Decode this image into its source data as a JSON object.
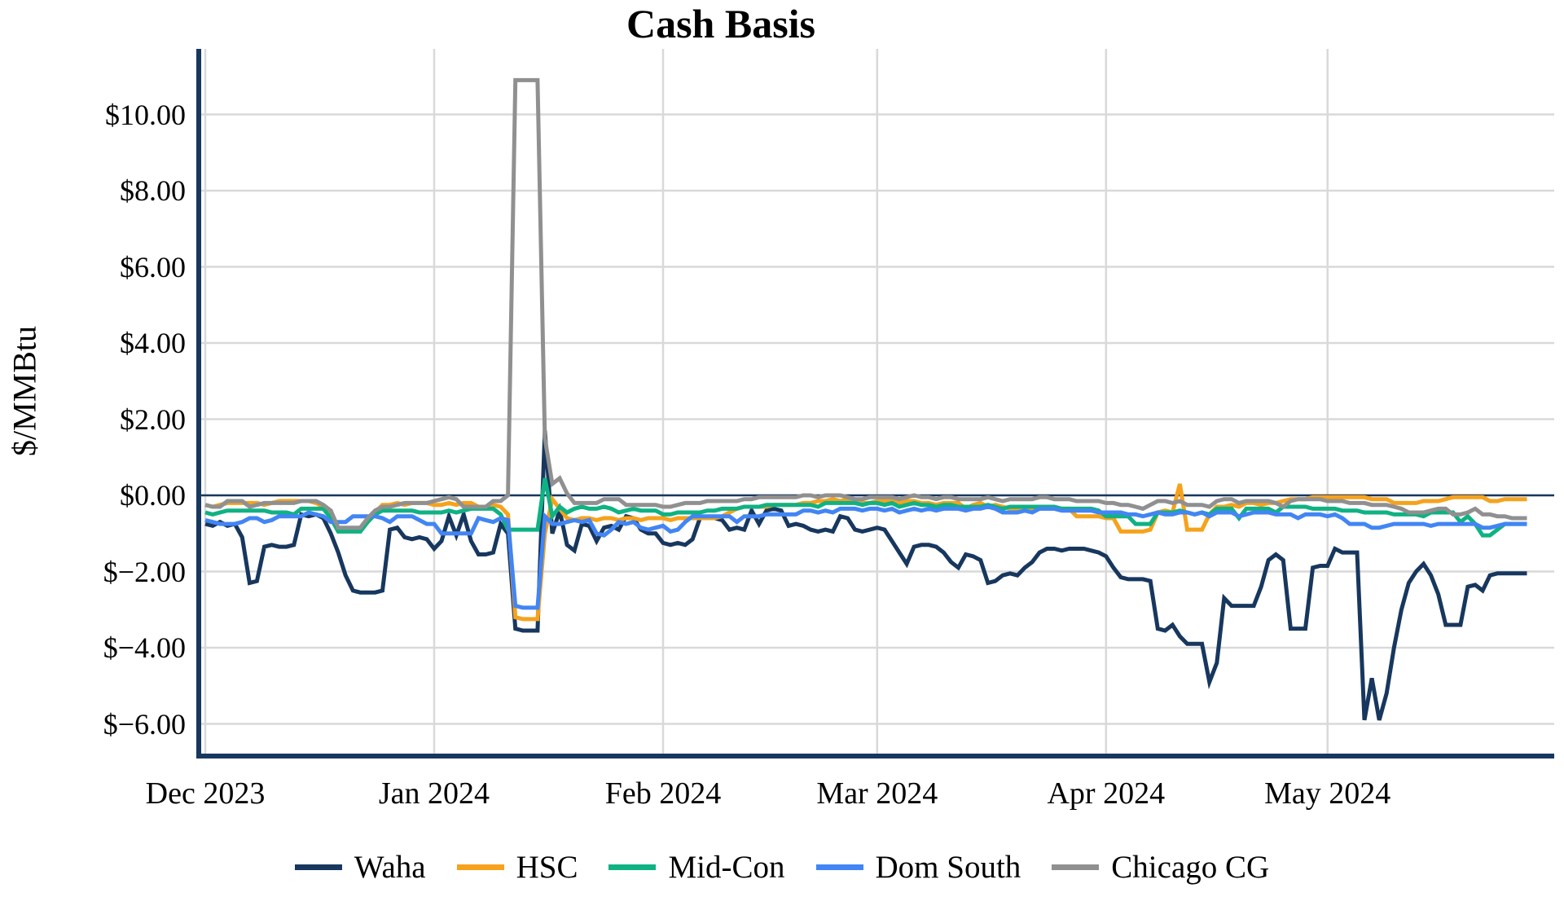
{
  "page": {
    "background": "#ffffff"
  },
  "chart_data": {
    "type": "line",
    "title": "Cash Basis",
    "ylabel": "$/MMBtu",
    "x_unit": "day index from Dec 1 2023 (daily cash basis values)",
    "x_axis": {
      "domain_days": [
        0,
        182
      ],
      "tick_days": [
        0,
        31,
        62,
        91,
        122,
        152
      ],
      "tick_labels": [
        "Dec 2023",
        "Jan 2024",
        "Feb 2024",
        "Mar 2024",
        "Apr 2024",
        "May 2024"
      ]
    },
    "y_axis": {
      "range": [
        -6.8,
        11.7
      ],
      "ticks": [
        {
          "value": 10,
          "label": "$10.00"
        },
        {
          "value": 8,
          "label": "$8.00"
        },
        {
          "value": 6,
          "label": "$6.00"
        },
        {
          "value": 4,
          "label": "$4.00"
        },
        {
          "value": 2,
          "label": "$2.00"
        },
        {
          "value": 0,
          "label": "$0.00"
        },
        {
          "value": -2,
          "label": "$−2.00"
        },
        {
          "value": -4,
          "label": "$−4.00"
        },
        {
          "value": -6,
          "label": "$−6.00"
        }
      ]
    },
    "grid": true,
    "legend_position": "bottom",
    "colors": {
      "axis": "#17375e",
      "zero_line": "#17375e",
      "gridline": "#d9d9d9"
    },
    "series": [
      {
        "name": "Waha",
        "color": "#17375e",
        "values": [
          -0.75,
          -0.8,
          -0.7,
          -0.8,
          -0.75,
          -1.1,
          -2.3,
          -2.25,
          -1.35,
          -1.3,
          -1.35,
          -1.35,
          -1.3,
          -0.5,
          -0.55,
          -0.5,
          -0.6,
          -1.0,
          -1.5,
          -2.1,
          -2.5,
          -2.55,
          -2.55,
          -2.55,
          -2.5,
          -0.9,
          -0.85,
          -1.1,
          -1.15,
          -1.1,
          -1.15,
          -1.4,
          -1.2,
          -0.55,
          -1.05,
          -0.5,
          -1.2,
          -1.55,
          -1.55,
          -1.5,
          -0.75,
          -1.0,
          -3.5,
          -3.55,
          -3.55,
          -3.55,
          1.7,
          -1.0,
          -0.4,
          -1.3,
          -1.45,
          -0.75,
          -0.8,
          -1.2,
          -0.85,
          -0.8,
          -0.9,
          -0.55,
          -0.6,
          -0.9,
          -1.0,
          -1.0,
          -1.25,
          -1.3,
          -1.25,
          -1.3,
          -1.15,
          -0.6,
          -0.6,
          -0.6,
          -0.65,
          -0.9,
          -0.85,
          -0.9,
          -0.4,
          -0.75,
          -0.4,
          -0.35,
          -0.4,
          -0.8,
          -0.75,
          -0.8,
          -0.9,
          -0.95,
          -0.9,
          -0.95,
          -0.55,
          -0.6,
          -0.9,
          -0.95,
          -0.9,
          -0.85,
          -0.9,
          -1.2,
          -1.5,
          -1.8,
          -1.35,
          -1.3,
          -1.3,
          -1.35,
          -1.5,
          -1.75,
          -1.9,
          -1.55,
          -1.6,
          -1.7,
          -2.3,
          -2.25,
          -2.1,
          -2.05,
          -2.1,
          -1.9,
          -1.75,
          -1.5,
          -1.4,
          -1.4,
          -1.45,
          -1.4,
          -1.4,
          -1.4,
          -1.45,
          -1.5,
          -1.6,
          -1.9,
          -2.15,
          -2.2,
          -2.2,
          -2.2,
          -2.25,
          -3.5,
          -3.55,
          -3.4,
          -3.7,
          -3.9,
          -3.9,
          -3.9,
          -4.9,
          -4.4,
          -2.7,
          -2.9,
          -2.9,
          -2.9,
          -2.9,
          -2.4,
          -1.7,
          -1.55,
          -1.7,
          -3.5,
          -3.5,
          -3.5,
          -1.9,
          -1.85,
          -1.85,
          -1.4,
          -1.5,
          -1.5,
          -1.5,
          -5.9,
          -4.8,
          -5.9,
          -5.2,
          -4.0,
          -3.0,
          -2.3,
          -2.0,
          -1.8,
          -2.1,
          -2.6,
          -3.4,
          -3.4,
          -3.4,
          -2.4,
          -2.35,
          -2.5,
          -2.1,
          -2.05,
          -2.05,
          -2.05,
          -2.05,
          -2.05
        ]
      },
      {
        "name": "HSC",
        "color": "#f6a21c",
        "values": [
          -0.25,
          -0.3,
          -0.25,
          -0.2,
          -0.2,
          -0.2,
          -0.2,
          -0.2,
          -0.25,
          -0.2,
          -0.15,
          -0.15,
          -0.15,
          -0.15,
          -0.15,
          -0.2,
          -0.3,
          -0.55,
          -0.95,
          -0.95,
          -0.95,
          -0.95,
          -0.7,
          -0.45,
          -0.25,
          -0.25,
          -0.2,
          -0.25,
          -0.2,
          -0.2,
          -0.2,
          -0.25,
          -0.25,
          -0.2,
          -0.25,
          -0.2,
          -0.2,
          -0.3,
          -0.3,
          -0.25,
          -0.3,
          -0.5,
          -3.2,
          -3.25,
          -3.25,
          -3.25,
          -1.0,
          -0.1,
          -0.35,
          -0.6,
          -0.65,
          -0.6,
          -0.6,
          -0.65,
          -0.6,
          -0.6,
          -0.65,
          -0.6,
          -0.6,
          -0.65,
          -0.6,
          -0.6,
          -0.6,
          -0.65,
          -0.6,
          -0.6,
          -0.6,
          -0.6,
          -0.6,
          -0.6,
          -0.55,
          -0.45,
          -0.35,
          -0.3,
          -0.3,
          -0.3,
          -0.3,
          -0.25,
          -0.25,
          -0.25,
          -0.25,
          -0.2,
          -0.2,
          -0.15,
          -0.15,
          -0.1,
          -0.15,
          -0.1,
          -0.15,
          -0.2,
          -0.2,
          -0.15,
          -0.15,
          -0.15,
          -0.2,
          -0.15,
          -0.15,
          -0.2,
          -0.2,
          -0.25,
          -0.2,
          -0.2,
          -0.2,
          -0.35,
          -0.25,
          -0.2,
          -0.3,
          -0.25,
          -0.3,
          -0.35,
          -0.35,
          -0.35,
          -0.35,
          -0.35,
          -0.35,
          -0.35,
          -0.35,
          -0.35,
          -0.55,
          -0.55,
          -0.55,
          -0.55,
          -0.6,
          -0.6,
          -0.95,
          -0.95,
          -0.95,
          -0.95,
          -0.9,
          -0.45,
          -0.4,
          -0.45,
          0.3,
          -0.9,
          -0.9,
          -0.9,
          -0.5,
          -0.3,
          -0.3,
          -0.25,
          -0.3,
          -0.2,
          -0.2,
          -0.25,
          -0.2,
          -0.2,
          -0.15,
          -0.1,
          -0.1,
          -0.1,
          -0.05,
          -0.05,
          -0.05,
          -0.05,
          -0.05,
          -0.05,
          -0.05,
          -0.05,
          -0.1,
          -0.1,
          -0.1,
          -0.2,
          -0.2,
          -0.2,
          -0.2,
          -0.15,
          -0.15,
          -0.15,
          -0.1,
          -0.05,
          -0.05,
          -0.05,
          -0.05,
          -0.05,
          -0.15,
          -0.15,
          -0.1,
          -0.1,
          -0.1,
          -0.1
        ]
      },
      {
        "name": "Mid-Con",
        "color": "#0fb283",
        "values": [
          -0.45,
          -0.5,
          -0.45,
          -0.4,
          -0.4,
          -0.4,
          -0.4,
          -0.4,
          -0.4,
          -0.45,
          -0.45,
          -0.45,
          -0.5,
          -0.35,
          -0.35,
          -0.35,
          -0.35,
          -0.6,
          -0.95,
          -0.95,
          -0.95,
          -0.95,
          -0.7,
          -0.5,
          -0.4,
          -0.4,
          -0.4,
          -0.4,
          -0.4,
          -0.45,
          -0.45,
          -0.45,
          -0.45,
          -0.4,
          -0.45,
          -0.4,
          -0.35,
          -0.35,
          -0.35,
          -0.35,
          -0.5,
          -0.9,
          -0.9,
          -0.9,
          -0.9,
          -0.9,
          0.45,
          -0.55,
          -0.3,
          -0.45,
          -0.35,
          -0.3,
          -0.35,
          -0.35,
          -0.3,
          -0.35,
          -0.45,
          -0.4,
          -0.35,
          -0.4,
          -0.4,
          -0.4,
          -0.5,
          -0.5,
          -0.45,
          -0.45,
          -0.45,
          -0.45,
          -0.4,
          -0.4,
          -0.35,
          -0.35,
          -0.35,
          -0.3,
          -0.3,
          -0.3,
          -0.25,
          -0.25,
          -0.25,
          -0.25,
          -0.25,
          -0.25,
          -0.25,
          -0.3,
          -0.2,
          -0.2,
          -0.2,
          -0.2,
          -0.2,
          -0.25,
          -0.2,
          -0.2,
          -0.25,
          -0.2,
          -0.3,
          -0.25,
          -0.2,
          -0.25,
          -0.25,
          -0.3,
          -0.25,
          -0.25,
          -0.3,
          -0.3,
          -0.3,
          -0.3,
          -0.25,
          -0.3,
          -0.35,
          -0.3,
          -0.3,
          -0.3,
          -0.3,
          -0.3,
          -0.3,
          -0.3,
          -0.35,
          -0.35,
          -0.35,
          -0.35,
          -0.35,
          -0.4,
          -0.55,
          -0.55,
          -0.55,
          -0.55,
          -0.75,
          -0.75,
          -0.75,
          -0.45,
          -0.45,
          -0.45,
          -0.4,
          -0.45,
          -0.5,
          -0.45,
          -0.5,
          -0.35,
          -0.35,
          -0.35,
          -0.6,
          -0.35,
          -0.35,
          -0.35,
          -0.35,
          -0.45,
          -0.3,
          -0.3,
          -0.3,
          -0.3,
          -0.35,
          -0.35,
          -0.35,
          -0.35,
          -0.4,
          -0.4,
          -0.4,
          -0.45,
          -0.45,
          -0.45,
          -0.45,
          -0.5,
          -0.5,
          -0.5,
          -0.5,
          -0.55,
          -0.45,
          -0.45,
          -0.45,
          -0.45,
          -0.7,
          -0.55,
          -0.75,
          -1.05,
          -1.05,
          -0.9,
          -0.75,
          -0.75,
          -0.75,
          -0.75
        ]
      },
      {
        "name": "Dom South",
        "color": "#4285f4",
        "values": [
          -0.65,
          -0.7,
          -0.75,
          -0.75,
          -0.75,
          -0.7,
          -0.6,
          -0.6,
          -0.7,
          -0.65,
          -0.55,
          -0.55,
          -0.55,
          -0.55,
          -0.45,
          -0.5,
          -0.55,
          -0.7,
          -0.7,
          -0.7,
          -0.55,
          -0.55,
          -0.55,
          -0.55,
          -0.6,
          -0.7,
          -0.55,
          -0.55,
          -0.55,
          -0.65,
          -0.75,
          -0.75,
          -1.0,
          -1.0,
          -1.0,
          -1.0,
          -1.0,
          -0.6,
          -0.65,
          -0.7,
          -0.6,
          -0.65,
          -2.9,
          -2.95,
          -2.95,
          -2.95,
          -0.55,
          -0.75,
          -0.75,
          -0.7,
          -0.65,
          -0.7,
          -0.65,
          -1.0,
          -1.05,
          -0.9,
          -0.7,
          -0.75,
          -0.7,
          -0.85,
          -0.9,
          -0.85,
          -0.8,
          -0.95,
          -0.9,
          -0.7,
          -0.55,
          -0.55,
          -0.55,
          -0.55,
          -0.55,
          -0.55,
          -0.7,
          -0.55,
          -0.55,
          -0.55,
          -0.5,
          -0.5,
          -0.5,
          -0.5,
          -0.5,
          -0.4,
          -0.4,
          -0.45,
          -0.4,
          -0.45,
          -0.35,
          -0.35,
          -0.35,
          -0.4,
          -0.35,
          -0.35,
          -0.4,
          -0.35,
          -0.45,
          -0.4,
          -0.35,
          -0.4,
          -0.35,
          -0.4,
          -0.35,
          -0.35,
          -0.35,
          -0.4,
          -0.35,
          -0.35,
          -0.3,
          -0.35,
          -0.45,
          -0.45,
          -0.45,
          -0.4,
          -0.45,
          -0.35,
          -0.35,
          -0.35,
          -0.4,
          -0.4,
          -0.4,
          -0.4,
          -0.4,
          -0.45,
          -0.45,
          -0.45,
          -0.45,
          -0.5,
          -0.5,
          -0.55,
          -0.5,
          -0.45,
          -0.5,
          -0.5,
          -0.45,
          -0.45,
          -0.5,
          -0.45,
          -0.55,
          -0.45,
          -0.45,
          -0.45,
          -0.55,
          -0.5,
          -0.45,
          -0.45,
          -0.45,
          -0.5,
          -0.5,
          -0.5,
          -0.6,
          -0.5,
          -0.5,
          -0.5,
          -0.55,
          -0.5,
          -0.6,
          -0.75,
          -0.75,
          -0.75,
          -0.85,
          -0.85,
          -0.8,
          -0.75,
          -0.75,
          -0.75,
          -0.75,
          -0.75,
          -0.8,
          -0.75,
          -0.75,
          -0.75,
          -0.75,
          -0.75,
          -0.75,
          -0.85,
          -0.85,
          -0.8,
          -0.75,
          -0.75,
          -0.75,
          -0.75
        ]
      },
      {
        "name": "Chicago CG",
        "color": "#909090",
        "values": [
          -0.25,
          -0.3,
          -0.3,
          -0.15,
          -0.15,
          -0.15,
          -0.3,
          -0.25,
          -0.2,
          -0.2,
          -0.2,
          -0.2,
          -0.2,
          -0.15,
          -0.15,
          -0.15,
          -0.25,
          -0.4,
          -0.85,
          -0.85,
          -0.85,
          -0.85,
          -0.6,
          -0.4,
          -0.3,
          -0.3,
          -0.25,
          -0.2,
          -0.2,
          -0.2,
          -0.2,
          -0.15,
          -0.1,
          -0.05,
          -0.1,
          -0.3,
          -0.3,
          -0.3,
          -0.3,
          -0.15,
          -0.15,
          0.0,
          10.9,
          10.9,
          10.9,
          10.9,
          1.5,
          0.3,
          0.45,
          0.05,
          -0.2,
          -0.2,
          -0.2,
          -0.2,
          -0.1,
          -0.1,
          -0.1,
          -0.25,
          -0.25,
          -0.25,
          -0.25,
          -0.25,
          -0.3,
          -0.3,
          -0.25,
          -0.2,
          -0.2,
          -0.2,
          -0.15,
          -0.15,
          -0.15,
          -0.15,
          -0.15,
          -0.1,
          -0.1,
          -0.05,
          -0.05,
          -0.05,
          -0.05,
          -0.05,
          -0.05,
          0.0,
          0.0,
          -0.05,
          0.0,
          0.0,
          0.0,
          -0.05,
          -0.1,
          -0.1,
          -0.05,
          -0.05,
          -0.05,
          -0.05,
          -0.1,
          -0.05,
          0.0,
          -0.05,
          -0.05,
          -0.1,
          -0.05,
          -0.05,
          -0.1,
          -0.1,
          -0.1,
          -0.1,
          -0.05,
          -0.1,
          -0.15,
          -0.1,
          -0.1,
          -0.1,
          -0.1,
          -0.05,
          -0.05,
          -0.1,
          -0.1,
          -0.1,
          -0.15,
          -0.15,
          -0.15,
          -0.15,
          -0.2,
          -0.2,
          -0.25,
          -0.25,
          -0.3,
          -0.35,
          -0.25,
          -0.15,
          -0.15,
          -0.2,
          -0.15,
          -0.25,
          -0.25,
          -0.25,
          -0.3,
          -0.15,
          -0.1,
          -0.1,
          -0.2,
          -0.15,
          -0.15,
          -0.15,
          -0.15,
          -0.2,
          -0.3,
          -0.15,
          -0.1,
          -0.1,
          -0.1,
          -0.1,
          -0.15,
          -0.15,
          -0.15,
          -0.2,
          -0.2,
          -0.2,
          -0.25,
          -0.25,
          -0.25,
          -0.3,
          -0.35,
          -0.45,
          -0.45,
          -0.45,
          -0.4,
          -0.35,
          -0.35,
          -0.5,
          -0.5,
          -0.45,
          -0.35,
          -0.5,
          -0.5,
          -0.55,
          -0.55,
          -0.6,
          -0.6,
          -0.6
        ]
      }
    ]
  }
}
